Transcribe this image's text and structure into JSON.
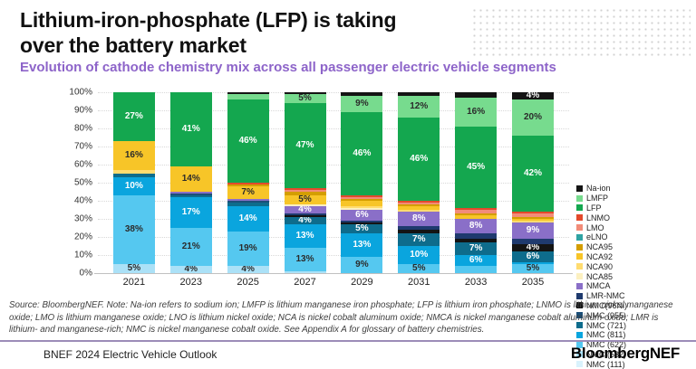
{
  "header": {
    "title_line1": "Lithium-iron-phosphate (LFP) is taking",
    "title_line2": "over the battery market",
    "subtitle": "Evolution of cathode chemistry mix across all passenger electric vehicle segments"
  },
  "chart_data": {
    "type": "bar",
    "stacked": true,
    "title": "Evolution of cathode chemistry mix across all passenger electric vehicle segments",
    "categories": [
      "2021",
      "2023",
      "2025",
      "2027",
      "2029",
      "2031",
      "2033",
      "2035"
    ],
    "y_ticks": [
      "0%",
      "10%",
      "20%",
      "30%",
      "40%",
      "50%",
      "60%",
      "70%",
      "80%",
      "90%",
      "100%"
    ],
    "ylim": [
      0,
      100
    ],
    "grid": "horizontal-dotted",
    "legend_position": "right",
    "legend": [
      {
        "label": "Na-ion",
        "color": "#141414"
      },
      {
        "label": "LMFP",
        "color": "#77db8e"
      },
      {
        "label": "LFP",
        "color": "#14a74f"
      },
      {
        "label": "LNMO",
        "color": "#e3492b"
      },
      {
        "label": "LMO",
        "color": "#f28c79"
      },
      {
        "label": "eLNO",
        "color": "#2fa3a3"
      },
      {
        "label": "NCA95",
        "color": "#d49e00"
      },
      {
        "label": "NCA92",
        "color": "#f7c528"
      },
      {
        "label": "NCA90",
        "color": "#ffdc70"
      },
      {
        "label": "NCA85",
        "color": "#fcf0c0"
      },
      {
        "label": "NMCA",
        "color": "#8a6fc8"
      },
      {
        "label": "LMR-NMC",
        "color": "#1f3a6e"
      },
      {
        "label": "NMC(96Ni)",
        "color": "#141414"
      },
      {
        "label": "NMC (955)",
        "color": "#1b4f79"
      },
      {
        "label": "NMC (721)",
        "color": "#0e6c8c"
      },
      {
        "label": "NMC (811)",
        "color": "#0aa5de"
      },
      {
        "label": "NMC (622)",
        "color": "#55c8f0"
      },
      {
        "label": "NMC (532)",
        "color": "#abe1f7"
      },
      {
        "label": "NMC (111)",
        "color": "#d9f2fc"
      }
    ],
    "series_note": "stack order bottom-to-top; values are % of mix per year; labels as printed on chart",
    "series": [
      {
        "name": "NMC (532)",
        "color": "#abe1f7",
        "label_dark": true,
        "values": [
          5,
          4,
          4,
          1,
          0,
          0,
          0,
          0
        ],
        "labels": [
          "5%",
          "4%",
          "4%",
          "",
          "",
          "",
          "",
          ""
        ]
      },
      {
        "name": "NMC (622)",
        "color": "#55c8f0",
        "label_dark": true,
        "values": [
          38,
          21,
          19,
          13,
          9,
          5,
          4,
          5
        ],
        "labels": [
          "38%",
          "21%",
          "19%",
          "13%",
          "9%",
          "5%",
          "",
          "5%"
        ]
      },
      {
        "name": "NMC (811)",
        "color": "#0aa5de",
        "label_dark": false,
        "values": [
          10,
          17,
          14,
          13,
          13,
          10,
          6,
          1
        ],
        "labels": [
          "10%",
          "17%",
          "14%",
          "13%",
          "13%",
          "10%",
          "6%",
          ""
        ]
      },
      {
        "name": "NMC (721)",
        "color": "#0e6c8c",
        "label_dark": false,
        "values": [
          2,
          1,
          2,
          4,
          5,
          7,
          7,
          6
        ],
        "labels": [
          "",
          "",
          "",
          "4%",
          "5%",
          "7%",
          "7%",
          "6%"
        ]
      },
      {
        "name": "NMC (955)",
        "color": "#1b4f79",
        "label_dark": false,
        "values": [
          0,
          1,
          1,
          0,
          0,
          0,
          0,
          0
        ],
        "labels": [
          "",
          "",
          "",
          "",
          "",
          "",
          "",
          ""
        ]
      },
      {
        "name": "NMC(96Ni)",
        "color": "#141414",
        "label_dark": false,
        "values": [
          0,
          0,
          0,
          1,
          1,
          2,
          2,
          4
        ],
        "labels": [
          "",
          "",
          "",
          "",
          "",
          "",
          "",
          "4%"
        ]
      },
      {
        "name": "LMR-NMC",
        "color": "#1f3a6e",
        "label_dark": false,
        "values": [
          0,
          0,
          0,
          1,
          1,
          2,
          3,
          3
        ],
        "labels": [
          "",
          "",
          "",
          "",
          "",
          "",
          "",
          ""
        ]
      },
      {
        "name": "NMCA",
        "color": "#8a6fc8",
        "label_dark": false,
        "values": [
          0,
          1,
          1,
          4,
          6,
          8,
          8,
          9
        ],
        "labels": [
          "",
          "",
          "",
          "4%",
          "6%",
          "8%",
          "8%",
          "9%"
        ]
      },
      {
        "name": "NCA85",
        "color": "#fcf0c0",
        "label_dark": true,
        "values": [
          0,
          0,
          0,
          1,
          1,
          0,
          0,
          0
        ],
        "labels": [
          "",
          "",
          "",
          "",
          "",
          "",
          "",
          ""
        ]
      },
      {
        "name": "NCA90",
        "color": "#ffdc70",
        "label_dark": true,
        "values": [
          2,
          0,
          0,
          0,
          1,
          1,
          0,
          1
        ],
        "labels": [
          "",
          "",
          "",
          "",
          "",
          "",
          "",
          ""
        ]
      },
      {
        "name": "NCA92",
        "color": "#f7c528",
        "label_dark": true,
        "values": [
          16,
          14,
          7,
          5,
          3,
          2,
          2,
          1
        ],
        "labels": [
          "16%",
          "14%",
          "7%",
          "5%",
          "",
          "",
          "",
          ""
        ]
      },
      {
        "name": "NCA95",
        "color": "#d49e00",
        "label_dark": true,
        "values": [
          0,
          0,
          1,
          2,
          1,
          1,
          1,
          1
        ],
        "labels": [
          "",
          "",
          "",
          "",
          "",
          "",
          "",
          ""
        ]
      },
      {
        "name": "LMO",
        "color": "#f28c79",
        "label_dark": true,
        "values": [
          0,
          0,
          0,
          1,
          1,
          1,
          2,
          2
        ],
        "labels": [
          "",
          "",
          "",
          "",
          "",
          "",
          "",
          ""
        ]
      },
      {
        "name": "LNMO",
        "color": "#e3492b",
        "label_dark": false,
        "values": [
          0,
          0,
          1,
          1,
          1,
          1,
          1,
          1
        ],
        "labels": [
          "",
          "",
          "",
          "",
          "",
          "",
          "",
          ""
        ]
      },
      {
        "name": "LFP",
        "color": "#14a74f",
        "label_dark": false,
        "values": [
          27,
          41,
          46,
          47,
          46,
          46,
          45,
          42
        ],
        "labels": [
          "27%",
          "41%",
          "46%",
          "47%",
          "46%",
          "46%",
          "45%",
          "42%"
        ]
      },
      {
        "name": "LMFP",
        "color": "#77db8e",
        "label_dark": true,
        "values": [
          0,
          0,
          3,
          5,
          9,
          12,
          16,
          20
        ],
        "labels": [
          "",
          "",
          "",
          "5%",
          "9%",
          "12%",
          "16%",
          "20%"
        ]
      },
      {
        "name": "Na-ion",
        "color": "#141414",
        "label_dark": false,
        "values": [
          0,
          0,
          1,
          1,
          2,
          2,
          3,
          4
        ],
        "labels": [
          "",
          "",
          "",
          "",
          "",
          "",
          "",
          "4%"
        ]
      }
    ]
  },
  "source_note": "Source: BloombergNEF. Note: Na-ion refers to sodium ion; LMFP is lithium manganese iron phosphate; LFP is lithium iron phosphate; LNMO is lithium nickel manganese oxide; LMO is lithium manganese oxide; LNO is lithium nickel oxide; NCA is nickel cobalt aluminum oxide; NMCA is nickel manganese cobalt aluminum oxide; LMR is lithium- and manganese-rich; NMC is nickel manganese cobalt oxide. See Appendix A for glossary of battery chemistries.",
  "footer": {
    "left": "BNEF 2024 Electric Vehicle Outlook",
    "brand": "BloombergNEF"
  }
}
